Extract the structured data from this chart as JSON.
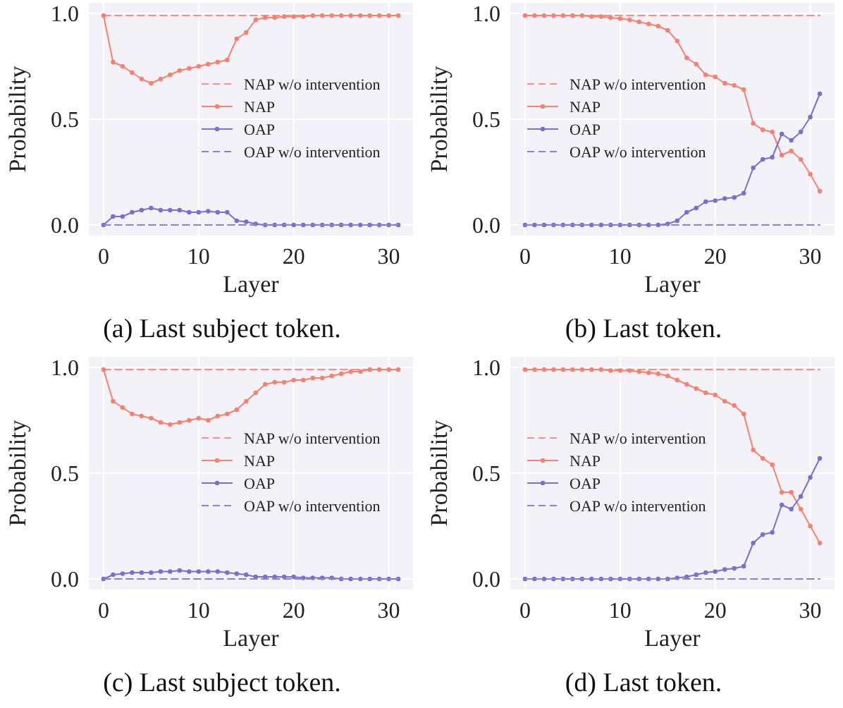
{
  "chart_data": [
    {
      "type": "line",
      "title": "(a) Last subject token.",
      "xlabel": "Layer",
      "ylabel": "Probability",
      "x": [
        0,
        1,
        2,
        3,
        4,
        5,
        6,
        7,
        8,
        9,
        10,
        11,
        12,
        13,
        14,
        15,
        16,
        17,
        18,
        19,
        20,
        21,
        22,
        23,
        24,
        25,
        26,
        27,
        28,
        29,
        30,
        31
      ],
      "xlim": [
        -1.55,
        32.55
      ],
      "xticks": [
        0,
        10,
        20,
        30
      ],
      "ylim": [
        -0.05,
        1.05
      ],
      "yticks": [
        {
          "value": 0,
          "label": "0.0"
        },
        {
          "value": 0.5,
          "label": "0.5"
        },
        {
          "value": 1,
          "label": "1.0"
        }
      ],
      "grid": true,
      "legend": "center right",
      "series": [
        {
          "name": "NAP w/o intervention",
          "color": "#f8907e",
          "line_style": "dashed",
          "marker": "none",
          "values": [
            0.99,
            0.99,
            0.99,
            0.99,
            0.99,
            0.99,
            0.99,
            0.99,
            0.99,
            0.99,
            0.99,
            0.99,
            0.99,
            0.99,
            0.99,
            0.99,
            0.99,
            0.99,
            0.99,
            0.99,
            0.99,
            0.99,
            0.99,
            0.99,
            0.99,
            0.99,
            0.99,
            0.99,
            0.99,
            0.99,
            0.99,
            0.99
          ]
        },
        {
          "name": "NAP",
          "color": "#f8806e",
          "line_style": "solid",
          "marker": "circle",
          "values": [
            0.99,
            0.77,
            0.75,
            0.72,
            0.69,
            0.67,
            0.69,
            0.71,
            0.73,
            0.74,
            0.75,
            0.76,
            0.77,
            0.78,
            0.88,
            0.91,
            0.97,
            0.98,
            0.98,
            0.985,
            0.985,
            0.985,
            0.99,
            0.99,
            0.99,
            0.99,
            0.99,
            0.99,
            0.99,
            0.99,
            0.99,
            0.99
          ]
        },
        {
          "name": "OAP",
          "color": "#7a6fd0",
          "line_style": "solid",
          "marker": "circle",
          "values": [
            0,
            0.04,
            0.04,
            0.06,
            0.07,
            0.08,
            0.07,
            0.07,
            0.07,
            0.06,
            0.06,
            0.065,
            0.06,
            0.06,
            0.02,
            0.015,
            0.005,
            0,
            0,
            0,
            0,
            0,
            0,
            0,
            0,
            0,
            0,
            0,
            0,
            0,
            0,
            0
          ]
        },
        {
          "name": "OAP w/o intervention",
          "color": "#8a80d8",
          "line_style": "dashed",
          "marker": "none",
          "values": [
            0,
            0,
            0,
            0,
            0,
            0,
            0,
            0,
            0,
            0,
            0,
            0,
            0,
            0,
            0,
            0,
            0,
            0,
            0,
            0,
            0,
            0,
            0,
            0,
            0,
            0,
            0,
            0,
            0,
            0,
            0,
            0
          ]
        }
      ]
    },
    {
      "type": "line",
      "title": "(b) Last token.",
      "xlabel": "Layer",
      "ylabel": "Probability",
      "x": [
        0,
        1,
        2,
        3,
        4,
        5,
        6,
        7,
        8,
        9,
        10,
        11,
        12,
        13,
        14,
        15,
        16,
        17,
        18,
        19,
        20,
        21,
        22,
        23,
        24,
        25,
        26,
        27,
        28,
        29,
        30,
        31
      ],
      "xlim": [
        -1.55,
        32.55
      ],
      "xticks": [
        0,
        10,
        20,
        30
      ],
      "ylim": [
        -0.05,
        1.05
      ],
      "yticks": [
        {
          "value": 0,
          "label": "0.0"
        },
        {
          "value": 0.5,
          "label": "0.5"
        },
        {
          "value": 1,
          "label": "1.0"
        }
      ],
      "grid": true,
      "legend": "center left",
      "series": [
        {
          "name": "NAP w/o intervention",
          "color": "#f8907e",
          "line_style": "dashed",
          "marker": "none",
          "values": [
            0.99,
            0.99,
            0.99,
            0.99,
            0.99,
            0.99,
            0.99,
            0.99,
            0.99,
            0.99,
            0.99,
            0.99,
            0.99,
            0.99,
            0.99,
            0.99,
            0.99,
            0.99,
            0.99,
            0.99,
            0.99,
            0.99,
            0.99,
            0.99,
            0.99,
            0.99,
            0.99,
            0.99,
            0.99,
            0.99,
            0.99,
            0.99
          ]
        },
        {
          "name": "NAP",
          "color": "#f8806e",
          "line_style": "solid",
          "marker": "circle",
          "values": [
            0.99,
            0.99,
            0.99,
            0.99,
            0.99,
            0.99,
            0.99,
            0.985,
            0.985,
            0.98,
            0.975,
            0.97,
            0.96,
            0.95,
            0.94,
            0.92,
            0.87,
            0.79,
            0.76,
            0.71,
            0.7,
            0.67,
            0.66,
            0.64,
            0.48,
            0.45,
            0.44,
            0.33,
            0.35,
            0.31,
            0.24,
            0.16
          ]
        },
        {
          "name": "OAP",
          "color": "#7a6fd0",
          "line_style": "solid",
          "marker": "circle",
          "values": [
            0,
            0,
            0,
            0,
            0,
            0,
            0,
            0,
            0,
            0,
            0,
            0,
            0,
            0,
            0,
            0.005,
            0.02,
            0.06,
            0.08,
            0.11,
            0.115,
            0.125,
            0.13,
            0.15,
            0.27,
            0.31,
            0.32,
            0.43,
            0.4,
            0.44,
            0.51,
            0.62
          ]
        },
        {
          "name": "OAP w/o intervention",
          "color": "#8a80d8",
          "line_style": "dashed",
          "marker": "none",
          "values": [
            0,
            0,
            0,
            0,
            0,
            0,
            0,
            0,
            0,
            0,
            0,
            0,
            0,
            0,
            0,
            0,
            0,
            0,
            0,
            0,
            0,
            0,
            0,
            0,
            0,
            0,
            0,
            0,
            0,
            0,
            0,
            0
          ]
        }
      ]
    },
    {
      "type": "line",
      "title": "(c) Last subject token.",
      "xlabel": "Layer",
      "ylabel": "Probability",
      "x": [
        0,
        1,
        2,
        3,
        4,
        5,
        6,
        7,
        8,
        9,
        10,
        11,
        12,
        13,
        14,
        15,
        16,
        17,
        18,
        19,
        20,
        21,
        22,
        23,
        24,
        25,
        26,
        27,
        28,
        29,
        30,
        31
      ],
      "xlim": [
        -1.55,
        32.55
      ],
      "xticks": [
        0,
        10,
        20,
        30
      ],
      "ylim": [
        -0.05,
        1.05
      ],
      "yticks": [
        {
          "value": 0,
          "label": "0.0"
        },
        {
          "value": 0.5,
          "label": "0.5"
        },
        {
          "value": 1,
          "label": "1.0"
        }
      ],
      "grid": true,
      "legend": "center right",
      "series": [
        {
          "name": "NAP w/o intervention",
          "color": "#f8907e",
          "line_style": "dashed",
          "marker": "none",
          "values": [
            0.99,
            0.99,
            0.99,
            0.99,
            0.99,
            0.99,
            0.99,
            0.99,
            0.99,
            0.99,
            0.99,
            0.99,
            0.99,
            0.99,
            0.99,
            0.99,
            0.99,
            0.99,
            0.99,
            0.99,
            0.99,
            0.99,
            0.99,
            0.99,
            0.99,
            0.99,
            0.99,
            0.99,
            0.99,
            0.99,
            0.99,
            0.99
          ]
        },
        {
          "name": "NAP",
          "color": "#f8806e",
          "line_style": "solid",
          "marker": "circle",
          "values": [
            0.99,
            0.84,
            0.81,
            0.78,
            0.77,
            0.76,
            0.74,
            0.73,
            0.74,
            0.75,
            0.76,
            0.75,
            0.77,
            0.78,
            0.8,
            0.84,
            0.88,
            0.92,
            0.93,
            0.93,
            0.94,
            0.94,
            0.95,
            0.95,
            0.96,
            0.97,
            0.98,
            0.98,
            0.99,
            0.99,
            0.99,
            0.99
          ]
        },
        {
          "name": "OAP",
          "color": "#7a6fd0",
          "line_style": "solid",
          "marker": "circle",
          "values": [
            0,
            0.02,
            0.025,
            0.03,
            0.03,
            0.03,
            0.035,
            0.035,
            0.04,
            0.035,
            0.035,
            0.035,
            0.035,
            0.03,
            0.025,
            0.02,
            0.01,
            0.01,
            0.01,
            0.01,
            0.01,
            0.005,
            0.005,
            0.005,
            0.005,
            0,
            0,
            0,
            0,
            0,
            0,
            0
          ]
        },
        {
          "name": "OAP w/o intervention",
          "color": "#8a80d8",
          "line_style": "dashed",
          "marker": "none",
          "values": [
            0,
            0,
            0,
            0,
            0,
            0,
            0,
            0,
            0,
            0,
            0,
            0,
            0,
            0,
            0,
            0,
            0,
            0,
            0,
            0,
            0,
            0,
            0,
            0,
            0,
            0,
            0,
            0,
            0,
            0,
            0,
            0
          ]
        }
      ]
    },
    {
      "type": "line",
      "title": "(d) Last token.",
      "xlabel": "Layer",
      "ylabel": "Probability",
      "x": [
        0,
        1,
        2,
        3,
        4,
        5,
        6,
        7,
        8,
        9,
        10,
        11,
        12,
        13,
        14,
        15,
        16,
        17,
        18,
        19,
        20,
        21,
        22,
        23,
        24,
        25,
        26,
        27,
        28,
        29,
        30,
        31
      ],
      "xlim": [
        -1.55,
        32.55
      ],
      "xticks": [
        0,
        10,
        20,
        30
      ],
      "ylim": [
        -0.05,
        1.05
      ],
      "yticks": [
        {
          "value": 0,
          "label": "0.0"
        },
        {
          "value": 0.5,
          "label": "0.5"
        },
        {
          "value": 1,
          "label": "1.0"
        }
      ],
      "grid": true,
      "legend": "center left",
      "series": [
        {
          "name": "NAP w/o intervention",
          "color": "#f8907e",
          "line_style": "dashed",
          "marker": "none",
          "values": [
            0.99,
            0.99,
            0.99,
            0.99,
            0.99,
            0.99,
            0.99,
            0.99,
            0.99,
            0.99,
            0.99,
            0.99,
            0.99,
            0.99,
            0.99,
            0.99,
            0.99,
            0.99,
            0.99,
            0.99,
            0.99,
            0.99,
            0.99,
            0.99,
            0.99,
            0.99,
            0.99,
            0.99,
            0.99,
            0.99,
            0.99,
            0.99
          ]
        },
        {
          "name": "NAP",
          "color": "#f8806e",
          "line_style": "solid",
          "marker": "circle",
          "values": [
            0.99,
            0.99,
            0.99,
            0.99,
            0.99,
            0.99,
            0.99,
            0.99,
            0.99,
            0.985,
            0.985,
            0.985,
            0.98,
            0.975,
            0.97,
            0.96,
            0.94,
            0.92,
            0.9,
            0.88,
            0.87,
            0.84,
            0.82,
            0.78,
            0.61,
            0.57,
            0.54,
            0.41,
            0.41,
            0.33,
            0.25,
            0.17
          ]
        },
        {
          "name": "OAP",
          "color": "#7a6fd0",
          "line_style": "solid",
          "marker": "circle",
          "values": [
            0,
            0,
            0,
            0,
            0,
            0,
            0,
            0,
            0,
            0,
            0,
            0,
            0,
            0,
            0,
            0,
            0.005,
            0.01,
            0.02,
            0.03,
            0.035,
            0.045,
            0.05,
            0.06,
            0.17,
            0.21,
            0.22,
            0.35,
            0.33,
            0.39,
            0.48,
            0.57
          ]
        },
        {
          "name": "OAP w/o intervention",
          "color": "#8a80d8",
          "line_style": "dashed",
          "marker": "none",
          "values": [
            0,
            0,
            0,
            0,
            0,
            0,
            0,
            0,
            0,
            0,
            0,
            0,
            0,
            0,
            0,
            0,
            0,
            0,
            0,
            0,
            0,
            0,
            0,
            0,
            0,
            0,
            0,
            0,
            0,
            0,
            0,
            0
          ]
        }
      ]
    }
  ]
}
